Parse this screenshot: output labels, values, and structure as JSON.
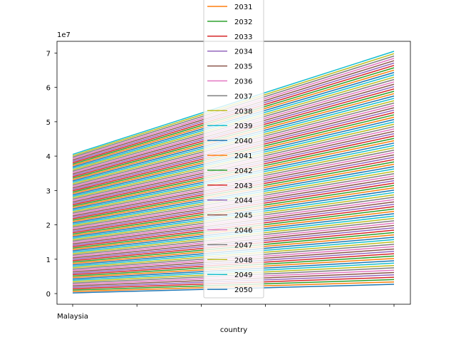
{
  "chart_data": {
    "type": "line",
    "title": "",
    "xlabel": "country",
    "ylabel": "",
    "y_offset_label": "1e7",
    "categories": [
      "Malaysia",
      "",
      "",
      "",
      "",
      ""
    ],
    "y_ticks": [
      0,
      10000000,
      20000000,
      30000000,
      40000000,
      50000000,
      60000000,
      70000000
    ],
    "y_tick_labels": [
      "0",
      "1",
      "2",
      "3",
      "4",
      "5",
      "6",
      "7"
    ],
    "ylim": [
      -3100000,
      73400000
    ],
    "legend_position": "top-center",
    "legend": [
      "2031",
      "2032",
      "2033",
      "2034",
      "2035",
      "2036",
      "2037",
      "2038",
      "2039",
      "2040",
      "2041",
      "2042",
      "2043",
      "2044",
      "2045",
      "2046",
      "2047",
      "2048",
      "2049",
      "2050"
    ],
    "series_count": 100,
    "series_start": [
      200000,
      40500000
    ],
    "series_end": [
      2700000,
      70500000
    ],
    "colors": [
      "#1f77b4",
      "#ff7f0e",
      "#2ca02c",
      "#d62728",
      "#9467bd",
      "#8c564b",
      "#e377c2",
      "#7f7f7f",
      "#bcbd22",
      "#17becf"
    ]
  }
}
